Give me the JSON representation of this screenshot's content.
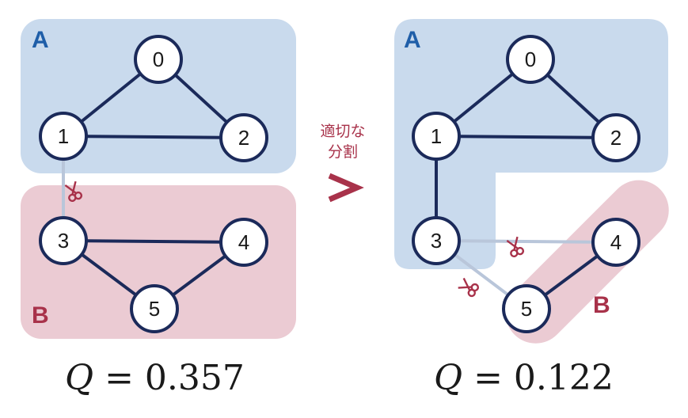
{
  "left": {
    "group_a_label": "A",
    "group_b_label": "B",
    "quality": "Q = 0.357",
    "q_symbol": "Q",
    "q_rest": " = 0.357"
  },
  "right": {
    "group_a_label": "A",
    "group_b_label": "B",
    "quality": "Q = 0.122",
    "q_symbol": "Q",
    "q_rest": " = 0.122"
  },
  "nodes": [
    "0",
    "1",
    "2",
    "3",
    "4",
    "5"
  ],
  "comparison": {
    "line1": "適切な",
    "line2": "分割",
    "symbol": ">"
  },
  "colors": {
    "group_a_fill": "#c9daed",
    "group_b_fill": "#ebcbd3",
    "edge": "#1b2a5a",
    "cut_edge": "#b9c6da",
    "accent_red": "#a8324a",
    "accent_blue": "#1f5ea8"
  },
  "icons": [
    "scissors-icon"
  ]
}
